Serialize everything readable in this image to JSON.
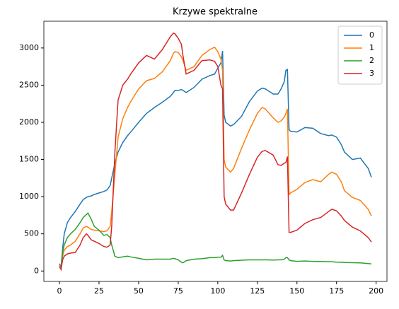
{
  "chart_data": {
    "type": "line",
    "title": "Krzywe spektralne",
    "x": [
      0,
      1,
      2,
      3,
      5,
      7,
      10,
      13,
      15,
      17,
      18,
      20,
      22,
      25,
      28,
      30,
      32,
      33,
      35,
      37,
      40,
      43,
      45,
      50,
      55,
      60,
      65,
      70,
      72,
      73,
      75,
      77,
      78,
      80,
      85,
      90,
      95,
      98,
      100,
      102,
      103,
      104,
      105,
      108,
      110,
      115,
      120,
      125,
      128,
      130,
      135,
      138,
      140,
      142,
      143,
      144,
      145,
      146,
      150,
      155,
      160,
      165,
      170,
      172,
      175,
      178,
      180,
      185,
      190,
      195,
      197
    ],
    "series": [
      {
        "name": "0",
        "color": "#1f77b4",
        "values": [
          100,
          50,
          300,
          500,
          650,
          720,
          800,
          900,
          960,
          990,
          1000,
          1010,
          1030,
          1050,
          1070,
          1090,
          1150,
          1250,
          1450,
          1600,
          1730,
          1820,
          1870,
          2000,
          2120,
          2200,
          2270,
          2350,
          2400,
          2430,
          2430,
          2440,
          2430,
          2400,
          2470,
          2580,
          2630,
          2650,
          2730,
          2800,
          2960,
          2100,
          2000,
          1950,
          1970,
          2080,
          2280,
          2420,
          2460,
          2450,
          2380,
          2380,
          2450,
          2550,
          2700,
          2710,
          1900,
          1880,
          1870,
          1930,
          1920,
          1850,
          1820,
          1830,
          1800,
          1700,
          1600,
          1500,
          1520,
          1380,
          1260
        ]
      },
      {
        "name": "1",
        "color": "#ff7f0e",
        "values": [
          80,
          30,
          200,
          280,
          330,
          350,
          400,
          500,
          580,
          600,
          590,
          560,
          550,
          540,
          530,
          540,
          600,
          800,
          1300,
          1800,
          2050,
          2200,
          2280,
          2450,
          2560,
          2590,
          2680,
          2830,
          2930,
          2950,
          2940,
          2880,
          2830,
          2700,
          2750,
          2900,
          2980,
          3010,
          2950,
          2850,
          2700,
          1500,
          1400,
          1330,
          1380,
          1650,
          1900,
          2120,
          2200,
          2180,
          2060,
          2000,
          2020,
          2070,
          2120,
          2180,
          1030,
          1050,
          1100,
          1190,
          1230,
          1200,
          1300,
          1330,
          1300,
          1200,
          1080,
          990,
          950,
          830,
          740
        ]
      },
      {
        "name": "2",
        "color": "#2ca02c",
        "values": [
          60,
          40,
          250,
          350,
          450,
          500,
          560,
          650,
          720,
          760,
          780,
          700,
          600,
          550,
          480,
          490,
          450,
          350,
          200,
          180,
          190,
          200,
          190,
          170,
          150,
          160,
          160,
          160,
          170,
          165,
          150,
          120,
          110,
          140,
          160,
          165,
          180,
          180,
          185,
          185,
          210,
          150,
          140,
          135,
          140,
          145,
          150,
          150,
          150,
          150,
          148,
          150,
          150,
          160,
          180,
          180,
          150,
          140,
          130,
          135,
          130,
          128,
          125,
          125,
          120,
          118,
          115,
          112,
          110,
          100,
          95
        ]
      },
      {
        "name": "3",
        "color": "#d62728",
        "values": [
          60,
          20,
          150,
          200,
          230,
          240,
          250,
          350,
          450,
          500,
          480,
          420,
          400,
          370,
          330,
          320,
          350,
          600,
          1600,
          2300,
          2500,
          2580,
          2650,
          2800,
          2900,
          2850,
          2980,
          3150,
          3200,
          3190,
          3130,
          3050,
          2900,
          2650,
          2700,
          2830,
          2840,
          2820,
          2750,
          2500,
          2450,
          1000,
          900,
          820,
          820,
          1050,
          1300,
          1530,
          1610,
          1620,
          1560,
          1430,
          1420,
          1450,
          1460,
          1540,
          520,
          520,
          550,
          640,
          690,
          720,
          800,
          830,
          810,
          740,
          680,
          590,
          540,
          450,
          390
        ]
      }
    ],
    "xlim": [
      -9.85,
      206.85
    ],
    "ylim": [
      -140,
      3360
    ],
    "xticks": [
      0,
      25,
      50,
      75,
      100,
      125,
      150,
      175,
      200
    ],
    "yticks": [
      0,
      500,
      1000,
      1500,
      2000,
      2500,
      3000
    ],
    "legend": "upper right"
  }
}
